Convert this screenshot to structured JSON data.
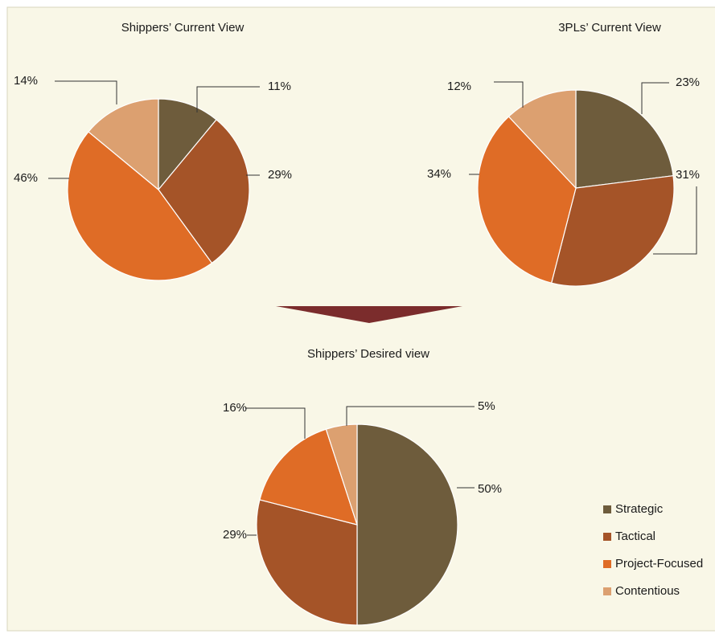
{
  "chart_data": [
    {
      "type": "pie",
      "title": "Shippers’ Current View",
      "categories": [
        "Strategic",
        "Tactical",
        "Project-Focused",
        "Contentious"
      ],
      "values": [
        11,
        29,
        46,
        14
      ],
      "value_labels": [
        "11%",
        "29%",
        "46%",
        "14%"
      ],
      "colors": [
        "#6e5c3c",
        "#a55428",
        "#df6c26",
        "#dca070"
      ]
    },
    {
      "type": "pie",
      "title": "3PLs’ Current View",
      "categories": [
        "Strategic",
        "Tactical",
        "Project-Focused",
        "Contentious"
      ],
      "values": [
        23,
        31,
        34,
        12
      ],
      "value_labels": [
        "23%",
        "31%",
        "34%",
        "12%"
      ],
      "colors": [
        "#6e5c3c",
        "#a55428",
        "#df6c26",
        "#dca070"
      ]
    },
    {
      "type": "pie",
      "title": "Shippers’ Desired view",
      "categories": [
        "Strategic",
        "Tactical",
        "Project-Focused",
        "Contentious"
      ],
      "values": [
        50,
        29,
        16,
        5
      ],
      "value_labels": [
        "50%",
        "29%",
        "16%",
        "5%"
      ],
      "colors": [
        "#6e5c3c",
        "#a55428",
        "#df6c26",
        "#dca070"
      ],
      "legend": "bottom-right"
    }
  ]
}
